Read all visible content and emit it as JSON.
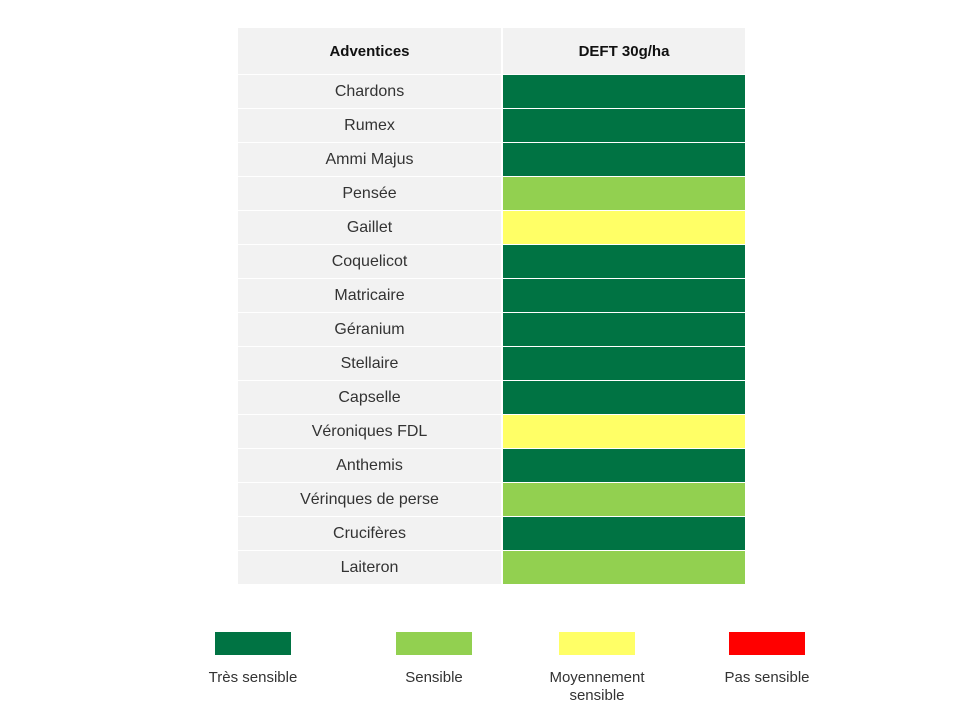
{
  "table": {
    "headers": [
      "Adventices",
      "DEFT 30g/ha"
    ],
    "rows": [
      {
        "name": "Chardons",
        "level": "tres_sensible"
      },
      {
        "name": "Rumex",
        "level": "tres_sensible"
      },
      {
        "name": "Ammi Majus",
        "level": "tres_sensible"
      },
      {
        "name": "Pensée",
        "level": "sensible"
      },
      {
        "name": "Gaillet",
        "level": "moyennement_sensible"
      },
      {
        "name": "Coquelicot",
        "level": "tres_sensible"
      },
      {
        "name": "Matricaire",
        "level": "tres_sensible"
      },
      {
        "name": "Géranium",
        "level": "tres_sensible"
      },
      {
        "name": "Stellaire",
        "level": "tres_sensible"
      },
      {
        "name": "Capselle",
        "level": "tres_sensible"
      },
      {
        "name": "Véroniques FDL",
        "level": "moyennement_sensible"
      },
      {
        "name": "Anthemis",
        "level": "tres_sensible"
      },
      {
        "name": "Vérinques de perse",
        "level": "sensible"
      },
      {
        "name": "Crucifères",
        "level": "tres_sensible"
      },
      {
        "name": "Laiteron",
        "level": "sensible"
      }
    ]
  },
  "legend": [
    {
      "key": "tres_sensible",
      "label": "Très sensible",
      "color": "#007343"
    },
    {
      "key": "sensible",
      "label": "Sensible",
      "color": "#92d050"
    },
    {
      "key": "moyennement_sensible",
      "label": "Moyennement sensible",
      "color": "#ffff66"
    },
    {
      "key": "pas_sensible",
      "label": "Pas sensible",
      "color": "#ff0000"
    }
  ]
}
